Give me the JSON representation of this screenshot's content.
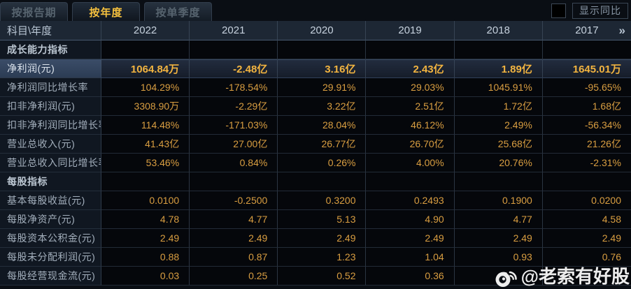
{
  "tabs": [
    {
      "label": "按报告期",
      "active": false
    },
    {
      "label": "按年度",
      "active": true
    },
    {
      "label": "按单季度",
      "active": false
    }
  ],
  "controls": {
    "compare_checkbox_checked": false,
    "compare_label": "显示同比"
  },
  "table": {
    "corner_label": "科目\\年度",
    "years": [
      "2022",
      "2021",
      "2020",
      "2019",
      "2018",
      "2017"
    ],
    "more_icon": "»",
    "rows": [
      {
        "type": "section",
        "label": "成长能力指标",
        "values": [
          "",
          "",
          "",
          "",
          "",
          ""
        ]
      },
      {
        "type": "highlight",
        "label": "净利润(元)",
        "values": [
          "1064.84万",
          "-2.48亿",
          "3.16亿",
          "2.43亿",
          "1.89亿",
          "1645.01万"
        ]
      },
      {
        "type": "data",
        "label": "净利润同比增长率",
        "values": [
          "104.29%",
          "-178.54%",
          "29.91%",
          "29.03%",
          "1045.91%",
          "-95.65%"
        ]
      },
      {
        "type": "data",
        "label": "扣非净利润(元)",
        "values": [
          "3308.90万",
          "-2.29亿",
          "3.22亿",
          "2.51亿",
          "1.72亿",
          "1.68亿"
        ]
      },
      {
        "type": "data",
        "label": "扣非净利润同比增长率",
        "values": [
          "114.48%",
          "-171.03%",
          "28.04%",
          "46.12%",
          "2.49%",
          "-56.34%"
        ]
      },
      {
        "type": "data",
        "label": "营业总收入(元)",
        "values": [
          "41.43亿",
          "27.00亿",
          "26.77亿",
          "26.70亿",
          "25.68亿",
          "21.26亿"
        ]
      },
      {
        "type": "data",
        "label": "营业总收入同比增长率",
        "values": [
          "53.46%",
          "0.84%",
          "0.26%",
          "4.00%",
          "20.76%",
          "-2.31%"
        ]
      },
      {
        "type": "section",
        "label": "每股指标",
        "values": [
          "",
          "",
          "",
          "",
          "",
          ""
        ]
      },
      {
        "type": "data",
        "label": "基本每股收益(元)",
        "values": [
          "0.0100",
          "-0.2500",
          "0.3200",
          "0.2493",
          "0.1900",
          "0.0200"
        ]
      },
      {
        "type": "data",
        "label": "每股净资产(元)",
        "values": [
          "4.78",
          "4.77",
          "5.13",
          "4.90",
          "4.77",
          "4.58"
        ]
      },
      {
        "type": "data",
        "label": "每股资本公积金(元)",
        "values": [
          "2.49",
          "2.49",
          "2.49",
          "2.49",
          "2.49",
          "2.49"
        ]
      },
      {
        "type": "data",
        "label": "每股未分配利润(元)",
        "values": [
          "0.88",
          "0.87",
          "1.23",
          "1.04",
          "0.93",
          "0.76"
        ]
      },
      {
        "type": "data",
        "label": "每股经营现金流(元)",
        "values": [
          "0.03",
          "0.25",
          "0.52",
          "0.36",
          "",
          ""
        ]
      }
    ]
  },
  "watermark": {
    "icon": "weibo-logo-icon",
    "text": "@老索有好股"
  },
  "colors": {
    "background": "#0a0e14",
    "header_bg": "#1d2734",
    "value_text": "#d99e41",
    "highlight_value_text": "#f2b440",
    "active_tab_text": "#f6c13e",
    "label_text": "#a3afbc"
  }
}
